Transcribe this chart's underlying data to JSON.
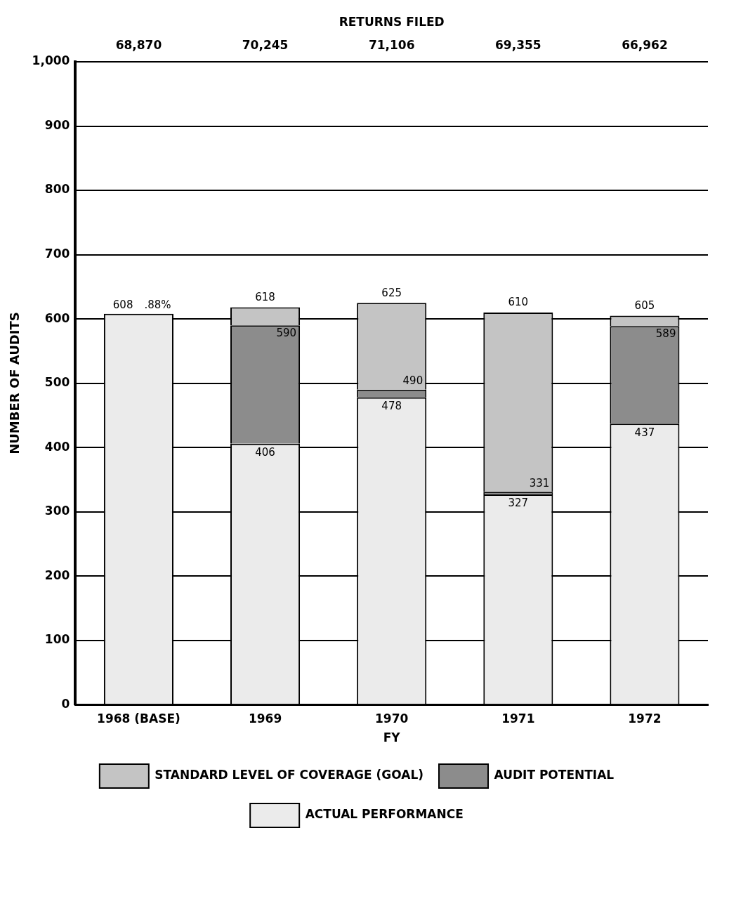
{
  "chart_data": {
    "type": "bar",
    "stacked": true,
    "xlabel": "FY",
    "ylabel": "NUMBER OF AUDITS",
    "categories": [
      "1968 (BASE)",
      "1969",
      "1970",
      "1971",
      "1972"
    ],
    "series": [
      {
        "name": "ACTUAL PERFORMANCE",
        "color": "#ebebeb",
        "values": [
          608,
          406,
          478,
          327,
          437
        ]
      },
      {
        "name": "AUDIT POTENTIAL",
        "color": "#8c8c8c",
        "values": [
          null,
          184,
          12,
          4,
          152
        ]
      },
      {
        "name": "STANDARD LEVEL OF COVERAGE (GOAL)",
        "color": "#c4c4c4",
        "values": [
          null,
          28,
          135,
          279,
          16
        ]
      }
    ],
    "ylim": [
      0,
      1000
    ],
    "yticks": [
      0,
      100,
      200,
      300,
      400,
      500,
      600,
      700,
      800,
      900,
      {
        "value": 1000,
        "label": "1,000"
      }
    ],
    "grid": "y",
    "legend": "bottom",
    "annotations": [
      "RETURNS FILED",
      "68,870",
      "70,245",
      "71,106",
      "69,355",
      "66,962",
      {
        "text": "608",
        "x": "1968 (BASE)",
        "y": 608
      },
      {
        "text": ".88%",
        "x": "1968 (BASE)",
        "y": 608
      },
      {
        "text": "406",
        "x": "1969",
        "y": 406
      },
      {
        "text": "590",
        "x": "1969",
        "y": 590
      },
      {
        "text": "618",
        "x": "1969",
        "y": 618
      },
      {
        "text": "478",
        "x": "1970",
        "y": 478
      },
      {
        "text": "490",
        "x": "1970",
        "y": 490
      },
      {
        "text": "625",
        "x": "1970",
        "y": 625
      },
      {
        "text": "327",
        "x": "1971",
        "y": 327
      },
      {
        "text": "331",
        "x": "1971",
        "y": 331
      },
      {
        "text": "610",
        "x": "1971",
        "y": 610
      },
      {
        "text": "437",
        "x": "1972",
        "y": 437
      },
      {
        "text": "589",
        "x": "1972",
        "y": 589
      },
      {
        "text": "605",
        "x": "1972",
        "y": 605
      }
    ]
  }
}
